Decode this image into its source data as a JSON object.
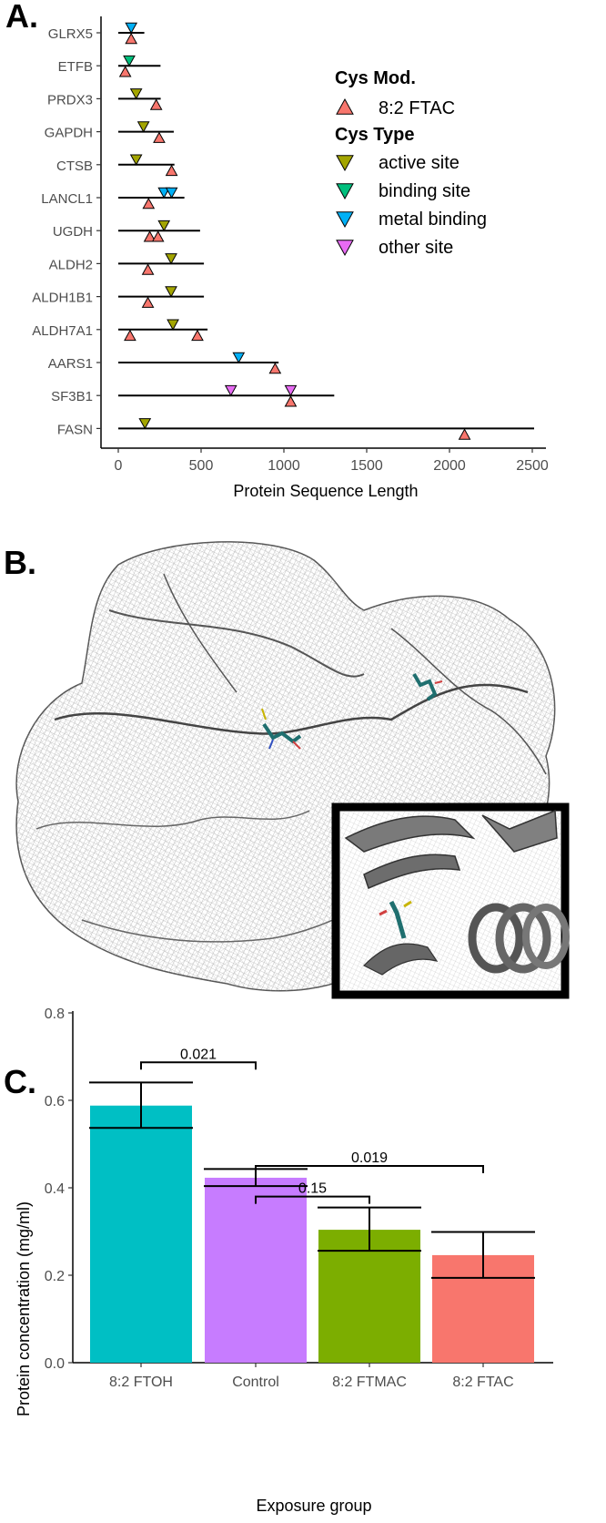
{
  "panels": {
    "a": "A.",
    "b": "B.",
    "c": "C."
  },
  "chart_data": [
    {
      "type": "scatter",
      "title": "",
      "xlabel": "Protein Sequence Length",
      "ylabel": "",
      "xlim": [
        -100,
        2550
      ],
      "xticks": [
        0,
        500,
        1000,
        1500,
        2000,
        2500
      ],
      "legend": {
        "position": "top-right",
        "mod_title": "Cys Mod.",
        "mod_items": [
          {
            "name": "8:2 FTAC",
            "color": "#F8766D",
            "shape": "triangle-up"
          }
        ],
        "type_title": "Cys Type",
        "type_items": [
          {
            "name": "active site",
            "color": "#A3A500",
            "shape": "triangle-down"
          },
          {
            "name": "binding site",
            "color": "#00BF7D",
            "shape": "triangle-down"
          },
          {
            "name": "metal binding",
            "color": "#00B0F6",
            "shape": "triangle-down"
          },
          {
            "name": "other site",
            "color": "#E76BF3",
            "shape": "triangle-down"
          }
        ]
      },
      "proteins": [
        {
          "name": "GLRX5",
          "length": 157,
          "mod": [
            78
          ],
          "sites": [
            {
              "pos": 78,
              "type": "metal binding"
            }
          ]
        },
        {
          "name": "ETFB",
          "length": 255,
          "mod": [
            42
          ],
          "sites": [
            {
              "pos": 66,
              "type": "binding site"
            }
          ]
        },
        {
          "name": "PRDX3",
          "length": 256,
          "mod": [
            229
          ],
          "sites": [
            {
              "pos": 108,
              "type": "active site"
            }
          ]
        },
        {
          "name": "GAPDH",
          "length": 335,
          "mod": [
            247
          ],
          "sites": [
            {
              "pos": 152,
              "type": "active site"
            }
          ]
        },
        {
          "name": "CTSB",
          "length": 339,
          "mod": [
            322
          ],
          "sites": [
            {
              "pos": 108,
              "type": "active site"
            }
          ]
        },
        {
          "name": "LANCL1",
          "length": 399,
          "mod": [
            183
          ],
          "sites": [
            {
              "pos": 276,
              "type": "metal binding"
            },
            {
              "pos": 322,
              "type": "metal binding"
            }
          ]
        },
        {
          "name": "UGDH",
          "length": 494,
          "mod": [
            190,
            240
          ],
          "sites": [
            {
              "pos": 276,
              "type": "active site"
            }
          ]
        },
        {
          "name": "ALDH2",
          "length": 517,
          "mod": [
            179
          ],
          "sites": [
            {
              "pos": 319,
              "type": "active site"
            }
          ]
        },
        {
          "name": "ALDH1B1",
          "length": 517,
          "mod": [
            179
          ],
          "sites": [
            {
              "pos": 319,
              "type": "active site"
            }
          ]
        },
        {
          "name": "ALDH7A1",
          "length": 539,
          "mod": [
            71,
            478
          ],
          "sites": [
            {
              "pos": 330,
              "type": "active site"
            }
          ]
        },
        {
          "name": "AARS1",
          "length": 968,
          "mod": [
            947
          ],
          "sites": [
            {
              "pos": 727,
              "type": "metal binding"
            }
          ]
        },
        {
          "name": "SF3B1",
          "length": 1304,
          "mod": [
            1041
          ],
          "sites": [
            {
              "pos": 680,
              "type": "other site"
            },
            {
              "pos": 1041,
              "type": "other site"
            }
          ]
        },
        {
          "name": "FASN",
          "length": 2511,
          "mod": [
            2091
          ],
          "sites": [
            {
              "pos": 161,
              "type": "active site"
            }
          ]
        }
      ]
    },
    {
      "type": "bar",
      "title": "",
      "xlabel": "Exposure group",
      "ylabel": "Protein concentration (mg/ml)",
      "ylim": [
        0,
        0.8
      ],
      "yticks": [
        "0.0",
        "0.2",
        "0.4",
        "0.6",
        "0.8"
      ],
      "categories": [
        "8:2 FTOH",
        "Control",
        "8:2 FTMAC",
        "8:2 FTAC"
      ],
      "values": [
        0.588,
        0.423,
        0.304,
        0.246
      ],
      "error_low": [
        0.537,
        0.404,
        0.256,
        0.194
      ],
      "error_high": [
        0.641,
        0.443,
        0.355,
        0.299
      ],
      "colors": [
        "#00BFC4",
        "#C77CFF",
        "#7CAE00",
        "#F8766D"
      ],
      "comparisons": [
        {
          "from": 0,
          "to": 1,
          "label": "0.021",
          "level": 0.687
        },
        {
          "from": 1,
          "to": 2,
          "label": "0.15",
          "level": 0.38
        },
        {
          "from": 1,
          "to": 3,
          "label": "0.019",
          "level": 0.45
        }
      ]
    }
  ]
}
